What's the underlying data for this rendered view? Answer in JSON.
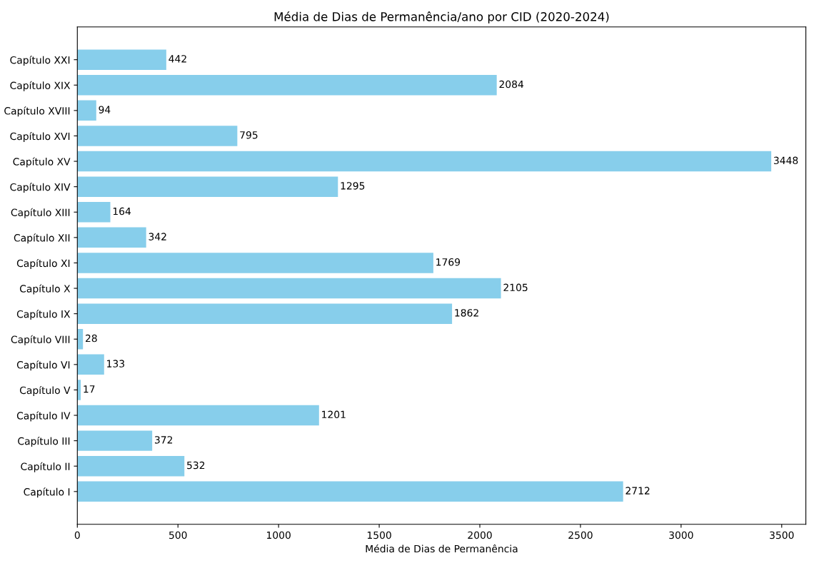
{
  "chart_data": {
    "type": "bar",
    "orientation": "horizontal",
    "title": "Média de Dias de Permanência/ano por CID (2020-2024)",
    "xlabel": "Média de Dias de Permanência",
    "categories": [
      "Capítulo XXI",
      "Capítulo XIX",
      "Capítulo XVIII",
      "Capítulo XVI",
      "Capítulo XV",
      "Capítulo XIV",
      "Capítulo XIII",
      "Capítulo XII",
      "Capítulo XI",
      "Capítulo X",
      "Capítulo IX",
      "Capítulo VIII",
      "Capítulo VI",
      "Capítulo V",
      "Capítulo IV",
      "Capítulo III",
      "Capítulo II",
      "Capítulo I"
    ],
    "values": [
      442,
      2084,
      94,
      795,
      3448,
      1295,
      164,
      342,
      1769,
      2105,
      1862,
      28,
      133,
      17,
      1201,
      372,
      532,
      2712
    ],
    "color": "#87ceeb",
    "data_labels": true,
    "grid": false,
    "xlim": [
      0,
      3620
    ],
    "xticks": [
      0,
      500,
      1000,
      1500,
      2000,
      2500,
      3000,
      3500
    ]
  }
}
